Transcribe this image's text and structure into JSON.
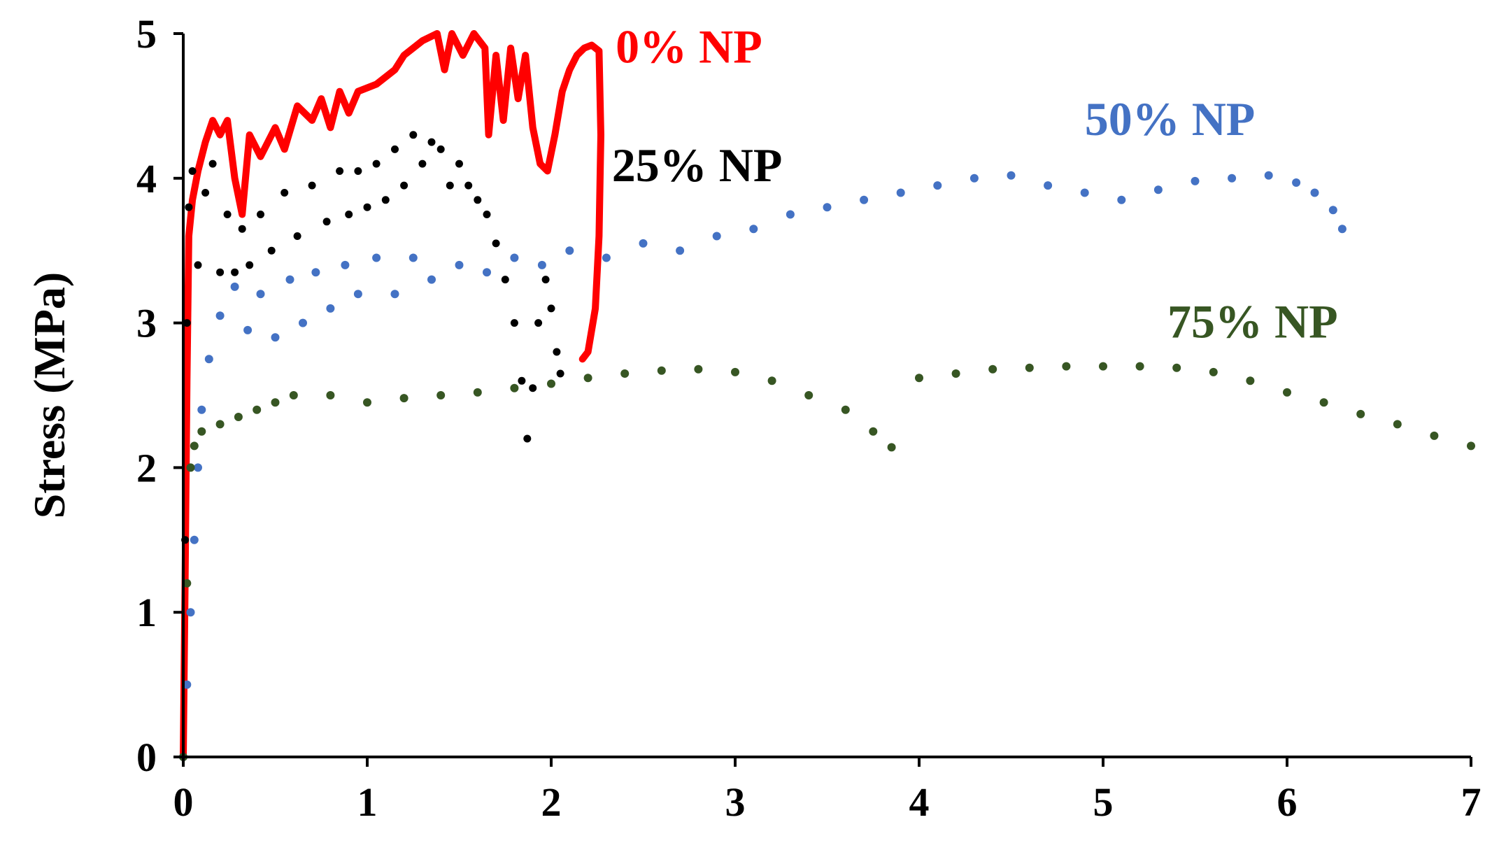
{
  "chart_data": {
    "type": "scatter",
    "title": "",
    "xlabel": "",
    "ylabel": "Stress (MPa)",
    "xlim": [
      0,
      7
    ],
    "ylim": [
      0,
      5
    ],
    "x_ticks": [
      "0",
      "1",
      "2",
      "3",
      "4",
      "5",
      "6",
      "7"
    ],
    "y_ticks": [
      "0",
      "1",
      "2",
      "3",
      "4",
      "5"
    ],
    "grid": false,
    "legend": "none",
    "series": [
      {
        "name": "0% NP",
        "color": "#ff0000",
        "style": "thick-line",
        "label_anchor": [
          2.35,
          4.8
        ],
        "points": [
          [
            0.0,
            0.0
          ],
          [
            0.01,
            1.2
          ],
          [
            0.02,
            2.6
          ],
          [
            0.03,
            3.6
          ],
          [
            0.05,
            3.85
          ],
          [
            0.08,
            4.05
          ],
          [
            0.12,
            4.25
          ],
          [
            0.16,
            4.4
          ],
          [
            0.2,
            4.3
          ],
          [
            0.24,
            4.4
          ],
          [
            0.28,
            4.0
          ],
          [
            0.32,
            3.75
          ],
          [
            0.36,
            4.3
          ],
          [
            0.42,
            4.15
          ],
          [
            0.5,
            4.35
          ],
          [
            0.55,
            4.2
          ],
          [
            0.62,
            4.5
          ],
          [
            0.7,
            4.4
          ],
          [
            0.75,
            4.55
          ],
          [
            0.8,
            4.35
          ],
          [
            0.85,
            4.6
          ],
          [
            0.9,
            4.45
          ],
          [
            0.95,
            4.6
          ],
          [
            1.05,
            4.65
          ],
          [
            1.15,
            4.75
          ],
          [
            1.2,
            4.85
          ],
          [
            1.3,
            4.95
          ],
          [
            1.38,
            5.0
          ],
          [
            1.42,
            4.75
          ],
          [
            1.46,
            5.0
          ],
          [
            1.52,
            4.85
          ],
          [
            1.58,
            5.0
          ],
          [
            1.64,
            4.9
          ],
          [
            1.66,
            4.3
          ],
          [
            1.7,
            4.85
          ],
          [
            1.74,
            4.4
          ],
          [
            1.78,
            4.9
          ],
          [
            1.82,
            4.55
          ],
          [
            1.86,
            4.85
          ],
          [
            1.9,
            4.35
          ],
          [
            1.94,
            4.1
          ],
          [
            1.98,
            4.05
          ],
          [
            2.02,
            4.3
          ],
          [
            2.06,
            4.6
          ],
          [
            2.1,
            4.75
          ],
          [
            2.14,
            4.85
          ],
          [
            2.18,
            4.9
          ],
          [
            2.22,
            4.92
          ],
          [
            2.26,
            4.88
          ],
          [
            2.27,
            4.3
          ],
          [
            2.26,
            3.6
          ],
          [
            2.24,
            3.1
          ],
          [
            2.2,
            2.8
          ],
          [
            2.17,
            2.75
          ]
        ]
      },
      {
        "name": "25% NP",
        "color": "#000000",
        "style": "dense-dots",
        "label_anchor": [
          2.33,
          3.98
        ],
        "points": [
          [
            0.0,
            0.0
          ],
          [
            0.01,
            1.5
          ],
          [
            0.02,
            3.0
          ],
          [
            0.03,
            3.8
          ],
          [
            0.05,
            4.05
          ],
          [
            0.08,
            3.4
          ],
          [
            0.12,
            3.9
          ],
          [
            0.16,
            4.1
          ],
          [
            0.2,
            3.35
          ],
          [
            0.24,
            3.75
          ],
          [
            0.28,
            3.35
          ],
          [
            0.32,
            3.65
          ],
          [
            0.36,
            3.4
          ],
          [
            0.42,
            3.75
          ],
          [
            0.48,
            3.5
          ],
          [
            0.55,
            3.9
          ],
          [
            0.62,
            3.6
          ],
          [
            0.7,
            3.95
          ],
          [
            0.78,
            3.7
          ],
          [
            0.85,
            4.05
          ],
          [
            0.9,
            3.75
          ],
          [
            0.95,
            4.05
          ],
          [
            1.0,
            3.8
          ],
          [
            1.05,
            4.1
          ],
          [
            1.1,
            3.85
          ],
          [
            1.15,
            4.2
          ],
          [
            1.2,
            3.95
          ],
          [
            1.25,
            4.3
          ],
          [
            1.3,
            4.1
          ],
          [
            1.35,
            4.25
          ],
          [
            1.4,
            4.2
          ],
          [
            1.45,
            3.95
          ],
          [
            1.5,
            4.1
          ],
          [
            1.55,
            3.95
          ],
          [
            1.6,
            3.85
          ],
          [
            1.65,
            3.75
          ],
          [
            1.7,
            3.55
          ],
          [
            1.75,
            3.3
          ],
          [
            1.8,
            3.0
          ],
          [
            1.84,
            2.6
          ],
          [
            1.87,
            2.2
          ],
          [
            1.9,
            2.55
          ],
          [
            1.93,
            3.0
          ],
          [
            1.97,
            3.3
          ],
          [
            2.0,
            3.1
          ],
          [
            2.03,
            2.8
          ],
          [
            2.05,
            2.65
          ]
        ]
      },
      {
        "name": "50% NP",
        "color": "#4472c4",
        "style": "dots",
        "label_anchor": [
          4.9,
          4.3
        ],
        "points": [
          [
            0.0,
            0.0
          ],
          [
            0.02,
            0.5
          ],
          [
            0.04,
            1.0
          ],
          [
            0.06,
            1.5
          ],
          [
            0.08,
            2.0
          ],
          [
            0.1,
            2.4
          ],
          [
            0.14,
            2.75
          ],
          [
            0.2,
            3.05
          ],
          [
            0.28,
            3.25
          ],
          [
            0.35,
            2.95
          ],
          [
            0.42,
            3.2
          ],
          [
            0.5,
            2.9
          ],
          [
            0.58,
            3.3
          ],
          [
            0.65,
            3.0
          ],
          [
            0.72,
            3.35
          ],
          [
            0.8,
            3.1
          ],
          [
            0.88,
            3.4
          ],
          [
            0.95,
            3.2
          ],
          [
            1.05,
            3.45
          ],
          [
            1.15,
            3.2
          ],
          [
            1.25,
            3.45
          ],
          [
            1.35,
            3.3
          ],
          [
            1.5,
            3.4
          ],
          [
            1.65,
            3.35
          ],
          [
            1.8,
            3.45
          ],
          [
            1.95,
            3.4
          ],
          [
            2.1,
            3.5
          ],
          [
            2.3,
            3.45
          ],
          [
            2.5,
            3.55
          ],
          [
            2.7,
            3.5
          ],
          [
            2.9,
            3.6
          ],
          [
            3.1,
            3.65
          ],
          [
            3.3,
            3.75
          ],
          [
            3.5,
            3.8
          ],
          [
            3.7,
            3.85
          ],
          [
            3.9,
            3.9
          ],
          [
            4.1,
            3.95
          ],
          [
            4.3,
            4.0
          ],
          [
            4.5,
            4.02
          ],
          [
            4.7,
            3.95
          ],
          [
            4.9,
            3.9
          ],
          [
            5.1,
            3.85
          ],
          [
            5.3,
            3.92
          ],
          [
            5.5,
            3.98
          ],
          [
            5.7,
            4.0
          ],
          [
            5.9,
            4.02
          ],
          [
            6.05,
            3.97
          ],
          [
            6.15,
            3.9
          ],
          [
            6.25,
            3.78
          ],
          [
            6.3,
            3.65
          ]
        ]
      },
      {
        "name": "75% NP",
        "color": "#375623",
        "style": "dots",
        "label_anchor": [
          5.35,
          2.9
        ],
        "points": [
          [
            0.0,
            0.0
          ],
          [
            0.02,
            1.2
          ],
          [
            0.04,
            2.0
          ],
          [
            0.06,
            2.15
          ],
          [
            0.1,
            2.25
          ],
          [
            0.2,
            2.3
          ],
          [
            0.3,
            2.35
          ],
          [
            0.4,
            2.4
          ],
          [
            0.5,
            2.45
          ],
          [
            0.6,
            2.5
          ],
          [
            0.8,
            2.5
          ],
          [
            1.0,
            2.45
          ],
          [
            1.2,
            2.48
          ],
          [
            1.4,
            2.5
          ],
          [
            1.6,
            2.52
          ],
          [
            1.8,
            2.55
          ],
          [
            2.0,
            2.58
          ],
          [
            2.2,
            2.62
          ],
          [
            2.4,
            2.65
          ],
          [
            2.6,
            2.67
          ],
          [
            2.8,
            2.68
          ],
          [
            3.0,
            2.66
          ],
          [
            3.2,
            2.6
          ],
          [
            3.4,
            2.5
          ],
          [
            3.6,
            2.4
          ],
          [
            3.75,
            2.25
          ],
          [
            3.85,
            2.14
          ],
          [
            4.0,
            2.62
          ],
          [
            4.2,
            2.65
          ],
          [
            4.4,
            2.68
          ],
          [
            4.6,
            2.69
          ],
          [
            4.8,
            2.7
          ],
          [
            5.0,
            2.7
          ],
          [
            5.2,
            2.7
          ],
          [
            5.4,
            2.69
          ],
          [
            5.6,
            2.66
          ],
          [
            5.8,
            2.6
          ],
          [
            6.0,
            2.52
          ],
          [
            6.2,
            2.45
          ],
          [
            6.4,
            2.37
          ],
          [
            6.6,
            2.3
          ],
          [
            6.8,
            2.22
          ],
          [
            7.0,
            2.15
          ]
        ]
      }
    ]
  }
}
